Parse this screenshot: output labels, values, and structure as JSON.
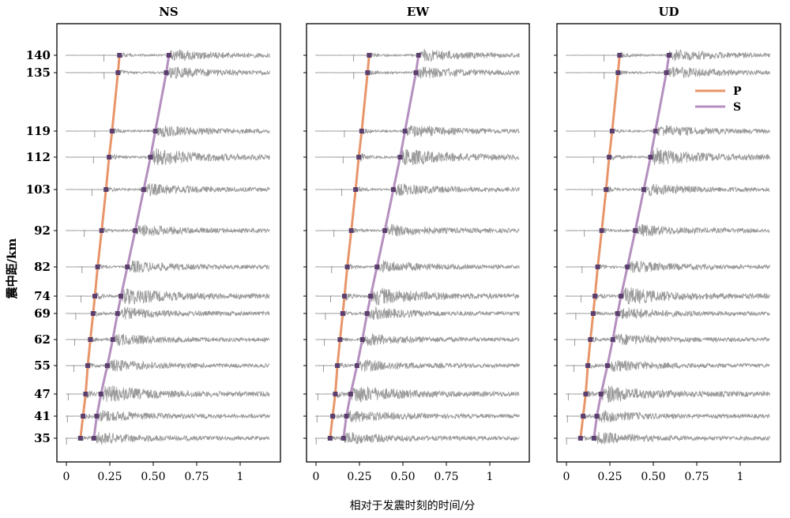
{
  "chart_data": {
    "type": "line",
    "panels": [
      {
        "title": "NS"
      },
      {
        "title": "EW"
      },
      {
        "title": "UD"
      }
    ],
    "xlabel": "相对于发震时刻的时间/分",
    "ylabel": "震中距/km",
    "xlim": [
      -0.05,
      1.2
    ],
    "ylim": [
      30,
      147
    ],
    "x_ticks": [
      0,
      0.25,
      0.5,
      0.75,
      1
    ],
    "x_tick_labels": [
      "0",
      "0.25",
      "0.50",
      "0.75",
      "1"
    ],
    "y_ticks": [
      35,
      41,
      47,
      55,
      62,
      69,
      74,
      82,
      92,
      103,
      112,
      119,
      135,
      140
    ],
    "x_end": 1.17,
    "series": [
      {
        "name": "P",
        "color": "#e8956a",
        "x": [
          0.081,
          0.096,
          0.111,
          0.123,
          0.138,
          0.154,
          0.164,
          0.18,
          0.203,
          0.228,
          0.246,
          0.263,
          0.297,
          0.306
        ],
        "y": [
          35,
          41,
          47,
          55,
          62,
          69,
          74,
          82,
          92,
          103,
          112,
          119,
          135,
          140
        ]
      },
      {
        "name": "S",
        "color": "#b48fbf",
        "x": [
          0.158,
          0.175,
          0.199,
          0.236,
          0.267,
          0.294,
          0.314,
          0.351,
          0.396,
          0.445,
          0.484,
          0.512,
          0.575,
          0.59
        ],
        "y": [
          35,
          41,
          47,
          55,
          62,
          69,
          74,
          82,
          92,
          103,
          112,
          119,
          135,
          140
        ]
      }
    ],
    "trace_color": "#9a9a9a",
    "marker_color": "#5b3f6e",
    "legend": "top-right of UD panel",
    "grid": false
  }
}
